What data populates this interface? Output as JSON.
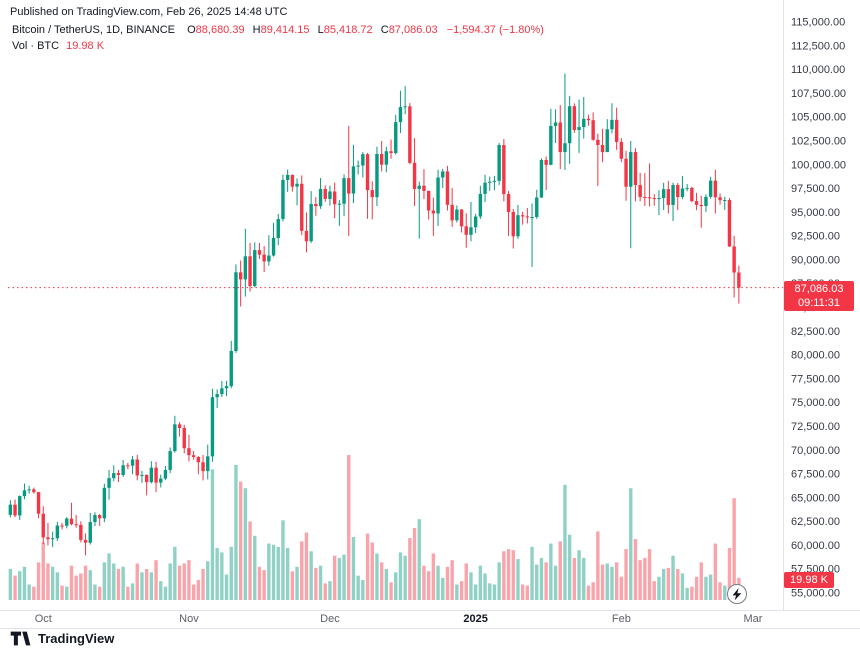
{
  "published_line": "Published on TradingView.com, Feb 26, 2025 14:48 UTC",
  "legend": {
    "symbol": "Bitcoin / TetherUS, 1D, BINANCE",
    "o_label": "O",
    "o": "88,680.39",
    "h_label": "H",
    "h": "89,414.15",
    "l_label": "L",
    "l": "85,418.72",
    "c_label": "C",
    "c": "87,086.03",
    "change": "−1,594.37 (−1.80%)",
    "vol_label": "Vol · BTC",
    "vol_value": "19.98 K"
  },
  "price_badge": {
    "price": "87,086.03",
    "countdown": "09:11:31"
  },
  "volume_badge": "19.98 K",
  "footer": {
    "brand": "TradingView"
  },
  "colors": {
    "up": "#089981",
    "down": "#F23645",
    "vol_up": "rgba(8,153,129,0.45)",
    "vol_down": "rgba(242,54,69,0.45)",
    "axis_text": "#363a45",
    "time_text": "#5d606b",
    "grid": "#e0e3eb"
  },
  "y_axis": {
    "min": 55000,
    "max": 115000,
    "step": 2500
  },
  "x_axis": {
    "ticks": [
      {
        "label": "Oct",
        "i": 7
      },
      {
        "label": "Nov",
        "i": 38
      },
      {
        "label": "Dec",
        "i": 68
      },
      {
        "label": "2025",
        "i": 99,
        "emph": true
      },
      {
        "label": "Feb",
        "i": 130
      },
      {
        "label": "Mar",
        "i": 158
      }
    ]
  },
  "chart_data": {
    "type": "candlestick",
    "title": "Bitcoin / TetherUS, 1D, BINANCE",
    "symbol": "BTCUSDT",
    "exchange": "BINANCE",
    "interval": "1D",
    "price_line": 87086.03,
    "last_change": -1594.37,
    "last_change_pct": -1.8,
    "ylim": [
      55000,
      115000
    ],
    "volume_unit": "K BTC",
    "columns": [
      "date",
      "open",
      "high",
      "low",
      "close",
      "volume_kbtc"
    ],
    "candles": [
      [
        "2024-09-24",
        63210,
        64750,
        62950,
        64280,
        28
      ],
      [
        "2024-09-25",
        64280,
        64820,
        62970,
        63150,
        22
      ],
      [
        "2024-09-26",
        63150,
        65250,
        62670,
        65180,
        26
      ],
      [
        "2024-09-27",
        65180,
        66500,
        64850,
        65790,
        30
      ],
      [
        "2024-09-28",
        65790,
        66260,
        65450,
        65890,
        14
      ],
      [
        "2024-09-29",
        65890,
        66080,
        65430,
        65600,
        12
      ],
      [
        "2024-09-30",
        65600,
        65620,
        62860,
        63330,
        34
      ],
      [
        "2024-10-01",
        63330,
        64130,
        60150,
        60840,
        52
      ],
      [
        "2024-10-02",
        60840,
        62370,
        60000,
        60650,
        33
      ],
      [
        "2024-10-03",
        60650,
        61450,
        59830,
        60750,
        30
      ],
      [
        "2024-10-04",
        60750,
        62480,
        60460,
        62090,
        25
      ],
      [
        "2024-10-05",
        62090,
        62370,
        61690,
        62060,
        13
      ],
      [
        "2024-10-06",
        62060,
        62990,
        61790,
        62820,
        12
      ],
      [
        "2024-10-07",
        62820,
        64480,
        62120,
        62230,
        31
      ],
      [
        "2024-10-08",
        62230,
        63200,
        61860,
        62160,
        22
      ],
      [
        "2024-10-09",
        62160,
        62540,
        60310,
        60580,
        24
      ],
      [
        "2024-10-10",
        60580,
        61260,
        58950,
        60280,
        31
      ],
      [
        "2024-10-11",
        60280,
        63420,
        60090,
        62450,
        27
      ],
      [
        "2024-10-12",
        62450,
        63480,
        62020,
        63190,
        14
      ],
      [
        "2024-10-13",
        63190,
        63290,
        62050,
        62850,
        12
      ],
      [
        "2024-10-14",
        62850,
        66480,
        62450,
        66050,
        34
      ],
      [
        "2024-10-15",
        66050,
        67920,
        64800,
        67070,
        42
      ],
      [
        "2024-10-16",
        67070,
        68420,
        66750,
        67600,
        33
      ],
      [
        "2024-10-17",
        67600,
        67940,
        66660,
        67400,
        28
      ],
      [
        "2024-10-18",
        67400,
        68980,
        67190,
        68420,
        30
      ],
      [
        "2024-10-19",
        68420,
        68690,
        68010,
        68380,
        12
      ],
      [
        "2024-10-20",
        68380,
        69400,
        67480,
        69030,
        15
      ],
      [
        "2024-10-21",
        69030,
        69520,
        66840,
        67350,
        33
      ],
      [
        "2024-10-22",
        67350,
        67830,
        66570,
        67410,
        25
      ],
      [
        "2024-10-23",
        67410,
        67470,
        65260,
        66650,
        28
      ],
      [
        "2024-10-24",
        66650,
        68850,
        66510,
        68170,
        25
      ],
      [
        "2024-10-25",
        68170,
        68770,
        65590,
        66600,
        36
      ],
      [
        "2024-10-26",
        66600,
        67440,
        66100,
        67020,
        17
      ],
      [
        "2024-10-27",
        67020,
        68330,
        66870,
        67930,
        12
      ],
      [
        "2024-10-28",
        67930,
        70290,
        67590,
        69910,
        33
      ],
      [
        "2024-10-29",
        69910,
        73620,
        69750,
        72720,
        48
      ],
      [
        "2024-10-30",
        72720,
        72960,
        71440,
        72340,
        31
      ],
      [
        "2024-10-31",
        72340,
        72670,
        69690,
        70215,
        33
      ],
      [
        "2024-11-01",
        70215,
        71630,
        68820,
        69480,
        36
      ],
      [
        "2024-11-02",
        69480,
        69920,
        69000,
        69290,
        14
      ],
      [
        "2024-11-03",
        69290,
        69390,
        67480,
        68740,
        18
      ],
      [
        "2024-11-04",
        68740,
        69500,
        66830,
        67810,
        28
      ],
      [
        "2024-11-05",
        67810,
        70580,
        66950,
        69360,
        35
      ],
      [
        "2024-11-06",
        69360,
        76460,
        68780,
        75570,
        118
      ],
      [
        "2024-11-07",
        75570,
        76400,
        74440,
        75900,
        47
      ],
      [
        "2024-11-08",
        75900,
        77270,
        75590,
        76510,
        43
      ],
      [
        "2024-11-09",
        76510,
        77300,
        75680,
        76740,
        23
      ],
      [
        "2024-11-10",
        76740,
        81500,
        76500,
        80430,
        48
      ],
      [
        "2024-11-11",
        80430,
        89530,
        80230,
        88700,
        122
      ],
      [
        "2024-11-12",
        88700,
        89940,
        85110,
        87950,
        107
      ],
      [
        "2024-11-13",
        87950,
        93270,
        86150,
        90380,
        101
      ],
      [
        "2024-11-14",
        90380,
        91790,
        86680,
        87250,
        71
      ],
      [
        "2024-11-15",
        87250,
        91850,
        87120,
        91030,
        58
      ],
      [
        "2024-11-16",
        91030,
        91780,
        90090,
        90560,
        30
      ],
      [
        "2024-11-17",
        90560,
        91450,
        88720,
        89840,
        27
      ],
      [
        "2024-11-18",
        89840,
        92600,
        89380,
        90460,
        51
      ],
      [
        "2024-11-19",
        90460,
        93900,
        90350,
        92310,
        50
      ],
      [
        "2024-11-20",
        92310,
        94830,
        91550,
        94290,
        48
      ],
      [
        "2024-11-21",
        94290,
        98950,
        94040,
        98400,
        72
      ],
      [
        "2024-11-22",
        98400,
        99490,
        97160,
        98930,
        47
      ],
      [
        "2024-11-23",
        98930,
        98980,
        97180,
        97700,
        26
      ],
      [
        "2024-11-24",
        97700,
        98560,
        95740,
        98000,
        30
      ],
      [
        "2024-11-25",
        98000,
        98870,
        92600,
        93050,
        53
      ],
      [
        "2024-11-26",
        93050,
        94980,
        90790,
        91960,
        61
      ],
      [
        "2024-11-27",
        91960,
        97230,
        91780,
        95870,
        44
      ],
      [
        "2024-11-28",
        95870,
        96610,
        94630,
        95650,
        29
      ],
      [
        "2024-11-29",
        95650,
        98600,
        95370,
        97460,
        31
      ],
      [
        "2024-11-30",
        97460,
        97830,
        96110,
        96410,
        15
      ],
      [
        "2024-12-01",
        96410,
        97810,
        95710,
        97190,
        17
      ],
      [
        "2024-12-02",
        97190,
        98120,
        94400,
        95850,
        40
      ],
      [
        "2024-12-03",
        95850,
        96290,
        93580,
        95900,
        38
      ],
      [
        "2024-12-04",
        95900,
        99000,
        94590,
        98590,
        41
      ],
      [
        "2024-12-05",
        98590,
        104090,
        92510,
        96970,
        131
      ],
      [
        "2024-12-06",
        96970,
        102100,
        95970,
        99830,
        57
      ],
      [
        "2024-12-07",
        99830,
        100440,
        98970,
        99920,
        22
      ],
      [
        "2024-12-08",
        99920,
        101350,
        98660,
        101110,
        18
      ],
      [
        "2024-12-09",
        101110,
        101240,
        94320,
        97330,
        60
      ],
      [
        "2024-12-10",
        97330,
        98270,
        94260,
        96600,
        52
      ],
      [
        "2024-12-11",
        96600,
        101890,
        95670,
        101130,
        42
      ],
      [
        "2024-12-12",
        101130,
        102500,
        99300,
        100010,
        34
      ],
      [
        "2024-12-13",
        100010,
        101900,
        99210,
        101420,
        28
      ],
      [
        "2024-12-14",
        101420,
        102650,
        100630,
        101230,
        16
      ],
      [
        "2024-12-15",
        101230,
        105250,
        101070,
        104480,
        25
      ],
      [
        "2024-12-16",
        104480,
        107790,
        103330,
        106060,
        43
      ],
      [
        "2024-12-17",
        106060,
        108260,
        105320,
        106140,
        40
      ],
      [
        "2024-12-18",
        106140,
        106480,
        100050,
        100200,
        56
      ],
      [
        "2024-12-19",
        100200,
        102800,
        95670,
        97460,
        65
      ],
      [
        "2024-12-20",
        97460,
        98230,
        92230,
        97800,
        73
      ],
      [
        "2024-12-21",
        97800,
        99540,
        96400,
        97250,
        31
      ],
      [
        "2024-12-22",
        97250,
        97290,
        94250,
        95190,
        26
      ],
      [
        "2024-12-23",
        95190,
        96540,
        92520,
        94880,
        42
      ],
      [
        "2024-12-24",
        94880,
        99470,
        93570,
        98660,
        31
      ],
      [
        "2024-12-25",
        98660,
        99570,
        97550,
        99300,
        20
      ],
      [
        "2024-12-26",
        99300,
        99880,
        95190,
        95790,
        30
      ],
      [
        "2024-12-27",
        95790,
        97550,
        93470,
        94160,
        36
      ],
      [
        "2024-12-28",
        94160,
        95730,
        93930,
        95300,
        14
      ],
      [
        "2024-12-29",
        95300,
        95340,
        92880,
        93530,
        17
      ],
      [
        "2024-12-30",
        93530,
        94900,
        91270,
        92640,
        33
      ],
      [
        "2024-12-31",
        92640,
        96090,
        91950,
        93430,
        25
      ],
      [
        "2025-01-01",
        93430,
        94850,
        92820,
        94560,
        14
      ],
      [
        "2025-01-02",
        94560,
        97790,
        94300,
        96940,
        31
      ],
      [
        "2025-01-03",
        96940,
        98950,
        96080,
        98110,
        24
      ],
      [
        "2025-01-04",
        98110,
        98750,
        97250,
        98220,
        15
      ],
      [
        "2025-01-05",
        98220,
        98830,
        97320,
        98310,
        14
      ],
      [
        "2025-01-06",
        98310,
        102280,
        97890,
        102080,
        34
      ],
      [
        "2025-01-07",
        102080,
        102700,
        96150,
        96920,
        44
      ],
      [
        "2025-01-08",
        96920,
        97250,
        92510,
        95040,
        46
      ],
      [
        "2025-01-09",
        95040,
        95350,
        91200,
        92480,
        45
      ],
      [
        "2025-01-10",
        92480,
        95780,
        92210,
        94700,
        37
      ],
      [
        "2025-01-11",
        94700,
        95050,
        93700,
        94570,
        14
      ],
      [
        "2025-01-12",
        94570,
        95450,
        93830,
        94490,
        13
      ],
      [
        "2025-01-13",
        94490,
        95940,
        89260,
        94510,
        48
      ],
      [
        "2025-01-14",
        94510,
        97370,
        94310,
        96560,
        32
      ],
      [
        "2025-01-15",
        96560,
        100680,
        96500,
        100500,
        38
      ],
      [
        "2025-01-16",
        100500,
        100870,
        97340,
        99990,
        34
      ],
      [
        "2025-01-17",
        99990,
        105870,
        99950,
        104080,
        51
      ],
      [
        "2025-01-18",
        104080,
        105820,
        102280,
        104440,
        31
      ],
      [
        "2025-01-19",
        104440,
        106270,
        99550,
        101330,
        53
      ],
      [
        "2025-01-20",
        101330,
        109590,
        99460,
        102260,
        104
      ],
      [
        "2025-01-21",
        102260,
        107240,
        100100,
        106150,
        59
      ],
      [
        "2025-01-22",
        106150,
        106450,
        103350,
        103650,
        38
      ],
      [
        "2025-01-23",
        103650,
        106850,
        101250,
        103960,
        45
      ],
      [
        "2025-01-24",
        103960,
        107120,
        102750,
        104820,
        38
      ],
      [
        "2025-01-25",
        104820,
        105260,
        104100,
        104680,
        13
      ],
      [
        "2025-01-26",
        104680,
        105500,
        102520,
        102620,
        16
      ],
      [
        "2025-01-27",
        102620,
        103260,
        97780,
        102080,
        62
      ],
      [
        "2025-01-28",
        102080,
        103780,
        100270,
        101330,
        32
      ],
      [
        "2025-01-29",
        101330,
        104790,
        101330,
        103730,
        33
      ],
      [
        "2025-01-30",
        103730,
        106460,
        103300,
        104720,
        30
      ],
      [
        "2025-01-31",
        104720,
        106000,
        101560,
        102400,
        34
      ],
      [
        "2025-02-01",
        102400,
        102790,
        100280,
        100630,
        21
      ],
      [
        "2025-02-02",
        100630,
        101460,
        96210,
        97690,
        46
      ],
      [
        "2025-02-03",
        97690,
        102500,
        91230,
        101330,
        101
      ],
      [
        "2025-02-04",
        101330,
        101740,
        96150,
        97870,
        55
      ],
      [
        "2025-02-05",
        97870,
        99150,
        96160,
        96610,
        36
      ],
      [
        "2025-02-06",
        96610,
        99120,
        95680,
        96580,
        38
      ],
      [
        "2025-02-07",
        96580,
        100140,
        95620,
        96500,
        46
      ],
      [
        "2025-02-08",
        96500,
        96900,
        95690,
        96480,
        17
      ],
      [
        "2025-02-09",
        96480,
        97330,
        94710,
        96500,
        21
      ],
      [
        "2025-02-10",
        96500,
        98100,
        95250,
        97440,
        28
      ],
      [
        "2025-02-11",
        97440,
        98300,
        94880,
        95780,
        29
      ],
      [
        "2025-02-12",
        95780,
        98120,
        94090,
        97870,
        40
      ],
      [
        "2025-02-13",
        97870,
        98080,
        95230,
        96610,
        28
      ],
      [
        "2025-02-14",
        96610,
        98830,
        96380,
        97500,
        24
      ],
      [
        "2025-02-15",
        97500,
        97970,
        97220,
        97570,
        11
      ],
      [
        "2025-02-16",
        97570,
        97700,
        96050,
        96180,
        12
      ],
      [
        "2025-02-17",
        96180,
        97050,
        95230,
        95780,
        21
      ],
      [
        "2025-02-18",
        95780,
        96750,
        93390,
        95660,
        34
      ],
      [
        "2025-02-19",
        95660,
        96900,
        95030,
        96630,
        21
      ],
      [
        "2025-02-20",
        96630,
        98730,
        96430,
        98330,
        23
      ],
      [
        "2025-02-21",
        98330,
        99480,
        94880,
        96580,
        51
      ],
      [
        "2025-02-22",
        96580,
        96990,
        95800,
        96270,
        16
      ],
      [
        "2025-02-23",
        96270,
        96640,
        95260,
        96290,
        13
      ],
      [
        "2025-02-24",
        96290,
        96500,
        91350,
        91420,
        47
      ],
      [
        "2025-02-25",
        91420,
        92540,
        86050,
        88680,
        92
      ],
      [
        "2025-02-26",
        88680.39,
        89414.15,
        85418.72,
        87086.03,
        19.98
      ]
    ]
  }
}
